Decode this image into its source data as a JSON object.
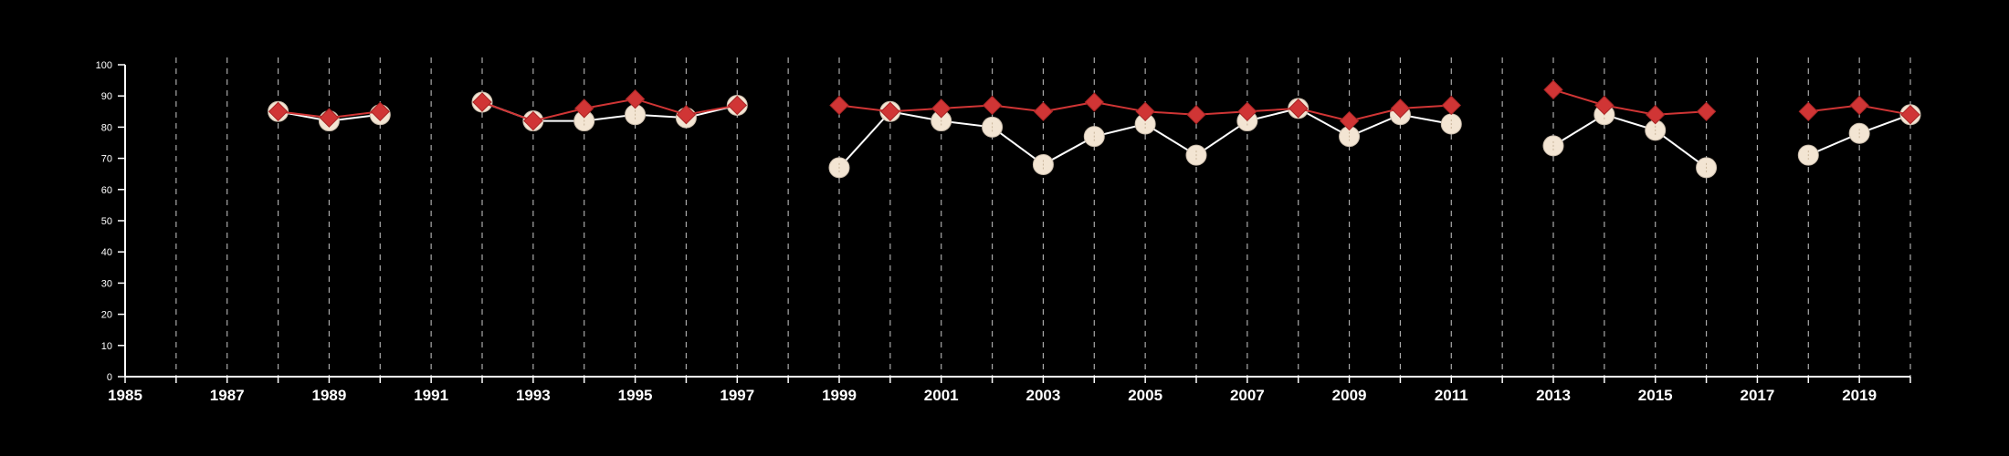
{
  "chart_data": {
    "type": "line",
    "title": "",
    "xlabel": "",
    "ylabel": "",
    "xlim": [
      1985,
      2020
    ],
    "ylim": [
      0,
      100
    ],
    "x_ticks": [
      1985,
      1987,
      1989,
      1991,
      1993,
      1995,
      1997,
      1999,
      2001,
      2003,
      2005,
      2007,
      2009,
      2011,
      2013,
      2015,
      2017,
      2019
    ],
    "y_ticks": [
      0,
      10,
      20,
      30,
      40,
      50,
      60,
      70,
      80,
      90,
      100
    ],
    "grid": "vertical dashed lines at every year",
    "legend": "none",
    "background_color": "#000000",
    "axis_color": "#ffffff",
    "series": [
      {
        "color": "#f3e5d3",
        "marker": "circle",
        "values": [
          [
            1988,
            85
          ],
          [
            1989,
            82
          ],
          [
            1990,
            84
          ],
          [
            1992,
            88
          ],
          [
            1993,
            82
          ],
          [
            1994,
            82
          ],
          [
            1995,
            84
          ],
          [
            1996,
            83
          ],
          [
            1997,
            87
          ],
          [
            1999,
            67
          ],
          [
            2000,
            85
          ],
          [
            2001,
            82
          ],
          [
            2002,
            80
          ],
          [
            2003,
            68
          ],
          [
            2004,
            77
          ],
          [
            2005,
            81
          ],
          [
            2006,
            71
          ],
          [
            2007,
            82
          ],
          [
            2008,
            86
          ],
          [
            2009,
            77
          ],
          [
            2010,
            84
          ],
          [
            2011,
            81
          ],
          [
            2013,
            74
          ],
          [
            2014,
            84
          ],
          [
            2015,
            79
          ],
          [
            2016,
            67
          ],
          [
            2018,
            71
          ],
          [
            2019,
            78
          ],
          [
            2020,
            84
          ]
        ]
      },
      {
        "color": "#d03535",
        "marker": "diamond",
        "values": [
          [
            1988,
            85
          ],
          [
            1989,
            83
          ],
          [
            1990,
            85
          ],
          [
            1992,
            88
          ],
          [
            1993,
            82
          ],
          [
            1994,
            86
          ],
          [
            1995,
            89
          ],
          [
            1996,
            84
          ],
          [
            1997,
            87
          ],
          [
            1999,
            87
          ],
          [
            2000,
            85
          ],
          [
            2001,
            86
          ],
          [
            2002,
            87
          ],
          [
            2003,
            85
          ],
          [
            2004,
            88
          ],
          [
            2005,
            85
          ],
          [
            2006,
            84
          ],
          [
            2007,
            85
          ],
          [
            2008,
            86
          ],
          [
            2009,
            82
          ],
          [
            2010,
            86
          ],
          [
            2011,
            87
          ],
          [
            2013,
            92
          ],
          [
            2014,
            87
          ],
          [
            2015,
            84
          ],
          [
            2016,
            85
          ],
          [
            2018,
            85
          ],
          [
            2019,
            87
          ],
          [
            2020,
            84
          ]
        ]
      }
    ]
  }
}
